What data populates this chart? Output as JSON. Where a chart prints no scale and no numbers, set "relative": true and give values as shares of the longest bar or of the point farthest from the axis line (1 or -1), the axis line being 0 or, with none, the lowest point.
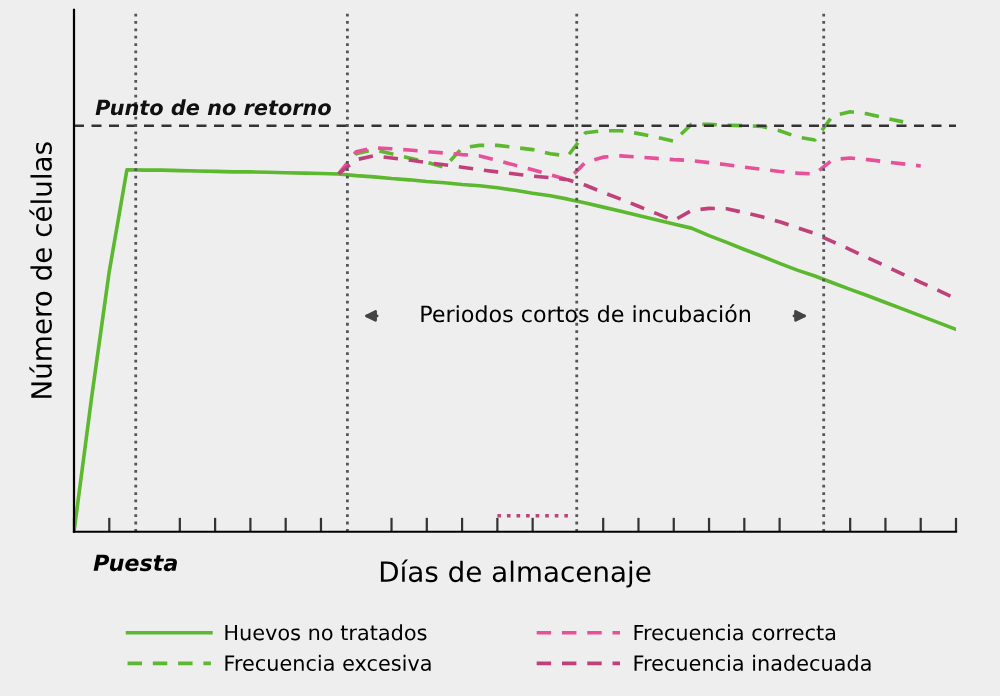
{
  "chart_data": {
    "type": "line",
    "relative": true,
    "xlabel": "Días de almacenaje",
    "ylabel": "Número de células",
    "categories": [
      null,
      null,
      null,
      null,
      null,
      null,
      null,
      null,
      null,
      null,
      null,
      null,
      null,
      null,
      null,
      null,
      null,
      null,
      null,
      null,
      null,
      null,
      null,
      null,
      null,
      null,
      null,
      null,
      null,
      null,
      null,
      null,
      null,
      null,
      null,
      null,
      null,
      null,
      null,
      null,
      null,
      null,
      null,
      null,
      null,
      null,
      null,
      null,
      null,
      null,
      null
    ],
    "grid": false,
    "legend": "bottom",
    "series": [
      {
        "name": "Huevos no tratados",
        "color": "#5cb82e",
        "line_style": "solid",
        "values": [
          0,
          0.32,
          0.62,
          0.862,
          0.861,
          0.861,
          0.86,
          0.859,
          0.858,
          0.857,
          0.857,
          0.856,
          0.855,
          0.854,
          0.853,
          0.852,
          0.848,
          0.845,
          0.841,
          0.838,
          0.834,
          0.831,
          0.827,
          0.824,
          0.819,
          0.813,
          0.806,
          0.8,
          0.792,
          0.783,
          0.773,
          0.763,
          0.753,
          0.743,
          0.733,
          0.723,
          0.705,
          0.689,
          0.672,
          0.656,
          0.639,
          0.623,
          0.609,
          0.593,
          0.577,
          0.562,
          0.546,
          0.53,
          0.514,
          0.498,
          0.482
        ]
      },
      {
        "name": "Frecuencia excesiva",
        "color": "#5cb82e",
        "line_style": "dashed",
        "values": [
          null,
          null,
          null,
          null,
          null,
          null,
          null,
          null,
          null,
          null,
          null,
          null,
          null,
          null,
          null,
          0.852,
          0.9,
          0.91,
          0.9,
          0.89,
          0.88,
          0.868,
          0.914,
          0.92,
          0.92,
          0.915,
          0.91,
          0.9,
          0.895,
          0.95,
          0.955,
          0.955,
          0.948,
          0.94,
          0.93,
          0.97,
          0.97,
          0.968,
          0.967,
          0.965,
          0.955,
          0.94,
          0.933,
          0.99,
          1.0,
          0.995,
          0.985,
          0.976,
          null,
          null,
          null
        ]
      },
      {
        "name": "Frecuencia correcta",
        "color": "#e8509a",
        "line_style": "dashed",
        "values": [
          null,
          null,
          null,
          null,
          null,
          null,
          null,
          null,
          null,
          null,
          null,
          null,
          null,
          null,
          null,
          0.852,
          0.905,
          0.914,
          0.912,
          0.909,
          0.905,
          0.902,
          0.898,
          0.895,
          0.884,
          0.873,
          0.862,
          0.85,
          0.838,
          0.88,
          0.892,
          0.895,
          0.892,
          0.889,
          0.886,
          0.884,
          0.879,
          0.874,
          0.868,
          0.863,
          0.858,
          0.854,
          0.852,
          0.886,
          0.89,
          0.886,
          0.881,
          0.876,
          0.871,
          null,
          null
        ]
      },
      {
        "name": "Frecuencia inadecuada",
        "color": "#c0407a",
        "line_style": "dashed",
        "values": [
          null,
          null,
          null,
          null,
          null,
          null,
          null,
          null,
          null,
          null,
          null,
          null,
          null,
          null,
          null,
          0.852,
          0.886,
          0.895,
          0.89,
          0.885,
          0.879,
          0.874,
          0.868,
          0.862,
          0.857,
          0.852,
          0.847,
          0.843,
          0.838,
          0.825,
          0.808,
          0.792,
          0.775,
          0.758,
          0.741,
          0.765,
          0.77,
          0.769,
          0.76,
          0.75,
          0.738,
          0.724,
          0.71,
          0.691,
          0.672,
          0.652,
          0.633,
          0.613,
          0.594,
          0.575,
          0.555
        ]
      },
      {
        "color": "#c0407a",
        "line_style": "dotted",
        "values": [
          null,
          null,
          null,
          null,
          null,
          null,
          null,
          null,
          null,
          null,
          null,
          null,
          null,
          null,
          null,
          null,
          null,
          null,
          null,
          null,
          null,
          null,
          null,
          null,
          0.038,
          0.038,
          0.038,
          0.038,
          0.038,
          null,
          null,
          null,
          null,
          null,
          null,
          null,
          null,
          null,
          null,
          null,
          null,
          null,
          null,
          null,
          null,
          null,
          null,
          null,
          null,
          null,
          null
        ]
      }
    ],
    "ref_lines": [
      {
        "axis": "y",
        "value": 0.967,
        "label": "Punto de no retorno",
        "color": "#333333",
        "line_style": "dashed"
      }
    ],
    "annotations": [
      "Puesta",
      "Periodos cortos de incubación"
    ]
  }
}
